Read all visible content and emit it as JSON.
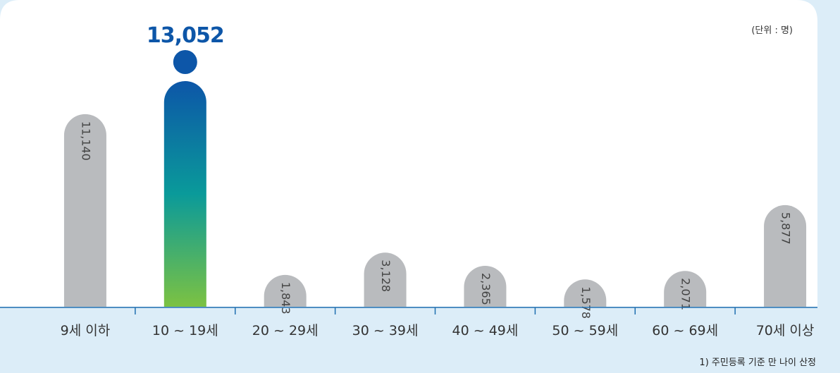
{
  "unit_label": "(단위 : 명)",
  "footnote": "1) 주민등록 기준 만 나이 산정",
  "chart_data": {
    "type": "bar",
    "title": "",
    "xlabel": "",
    "ylabel": "",
    "categories": [
      "9세 이하",
      "10 ~ 19세",
      "20 ~ 29세",
      "30 ~ 39세",
      "40 ~ 49세",
      "50 ~ 59세",
      "60 ~ 69세",
      "70세 이상"
    ],
    "values": [
      11140,
      13052,
      1843,
      3128,
      2365,
      1578,
      2071,
      5877
    ],
    "value_labels": [
      "11,140",
      "13,052",
      "1,843",
      "3,128",
      "2,365",
      "1,578",
      "2,071",
      "5,877"
    ],
    "highlight_index": 1,
    "ylim": [
      0,
      13052
    ],
    "grid": false,
    "colors": {
      "bar": "#b9bbbe",
      "highlight_top": "#0d56a8",
      "highlight_mid": "#0a9a9a",
      "highlight_bottom": "#7cc242",
      "highlight_label": "#0d56a8",
      "axis": "#1f6fb0",
      "panel": "#ffffff",
      "background": "#dcedf8"
    }
  }
}
